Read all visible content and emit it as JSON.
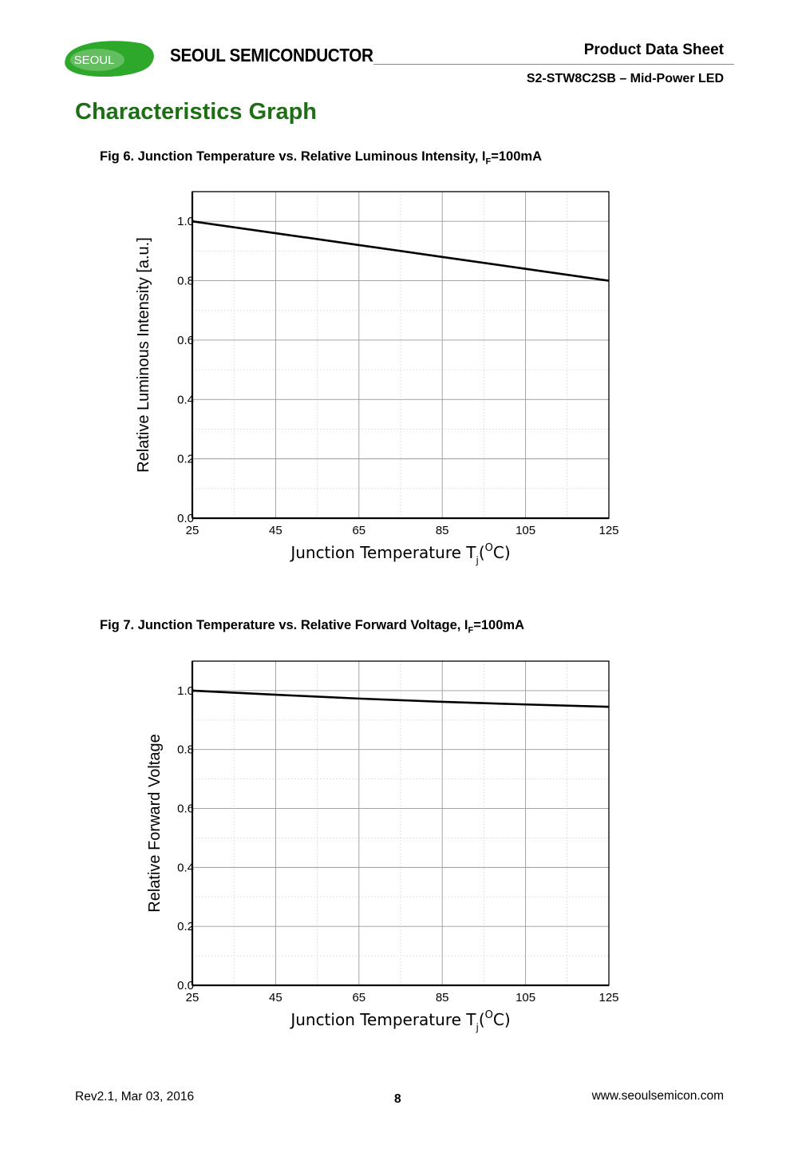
{
  "header": {
    "logo_text": "SEOUL",
    "company_name": "SEOUL SEMICONDUCTOR",
    "doc_type": "Product Data Sheet",
    "product_name": "S2-STW8C2SB – Mid-Power LED"
  },
  "section_title": "Characteristics Graph",
  "figures": [
    {
      "caption_main": "Fig 6. Junction Temperature vs. Relative Luminous Intensity,  I",
      "caption_sub": "F",
      "caption_end": "=100mA"
    },
    {
      "caption_main": "Fig 7. Junction Temperature vs. Relative Forward Voltage,  I",
      "caption_sub": "F",
      "caption_end": "=100mA"
    }
  ],
  "chart_data": [
    {
      "type": "line",
      "title": "Fig 6. Junction Temperature vs. Relative Luminous Intensity, IF=100mA",
      "xlabel": "Junction Temperature Tj(°C)",
      "xlabel_parts": {
        "main": "Junction Temperature T",
        "sub": "j",
        "paren_open": "(",
        "sup": "O",
        "unit": "C)"
      },
      "ylabel": "Relative Luminous Intensity [a.u.]",
      "xlim": [
        25,
        125
      ],
      "ylim": [
        0.0,
        1.1
      ],
      "x_ticks": [
        "25",
        "45",
        "65",
        "85",
        "105",
        "125"
      ],
      "y_ticks": [
        "0.0",
        "0.2",
        "0.4",
        "0.6",
        "0.8",
        "1.0"
      ],
      "grid": true,
      "series": [
        {
          "name": "Relative Luminous Intensity",
          "x": [
            25,
            45,
            65,
            85,
            105,
            125
          ],
          "y": [
            1.0,
            0.96,
            0.92,
            0.88,
            0.84,
            0.8
          ]
        }
      ]
    },
    {
      "type": "line",
      "title": "Fig 7. Junction Temperature vs. Relative Forward Voltage, IF=100mA",
      "xlabel": "Junction Temperature Tj(°C)",
      "xlabel_parts": {
        "main": "Junction Temperature T",
        "sub": "j",
        "paren_open": "(",
        "sup": "O",
        "unit": "C)"
      },
      "ylabel": "Relative Forward Voltage",
      "xlim": [
        25,
        125
      ],
      "ylim": [
        0.0,
        1.1
      ],
      "x_ticks": [
        "25",
        "45",
        "65",
        "85",
        "105",
        "125"
      ],
      "y_ticks": [
        "0.0",
        "0.2",
        "0.4",
        "0.6",
        "0.8",
        "1.0"
      ],
      "grid": true,
      "series": [
        {
          "name": "Relative Forward Voltage",
          "x": [
            25,
            45,
            65,
            85,
            105,
            125
          ],
          "y": [
            1.0,
            0.986,
            0.973,
            0.962,
            0.953,
            0.945
          ]
        }
      ]
    }
  ],
  "footer": {
    "revision": "Rev2.1, Mar 03, 2016",
    "page_number": "8",
    "website": "www.seoulsemicon.com"
  },
  "colors": {
    "brand_green": "#1e6e16",
    "logo_green": "#2ea82a",
    "grid": "#9a9a9a",
    "line": "#000000"
  }
}
